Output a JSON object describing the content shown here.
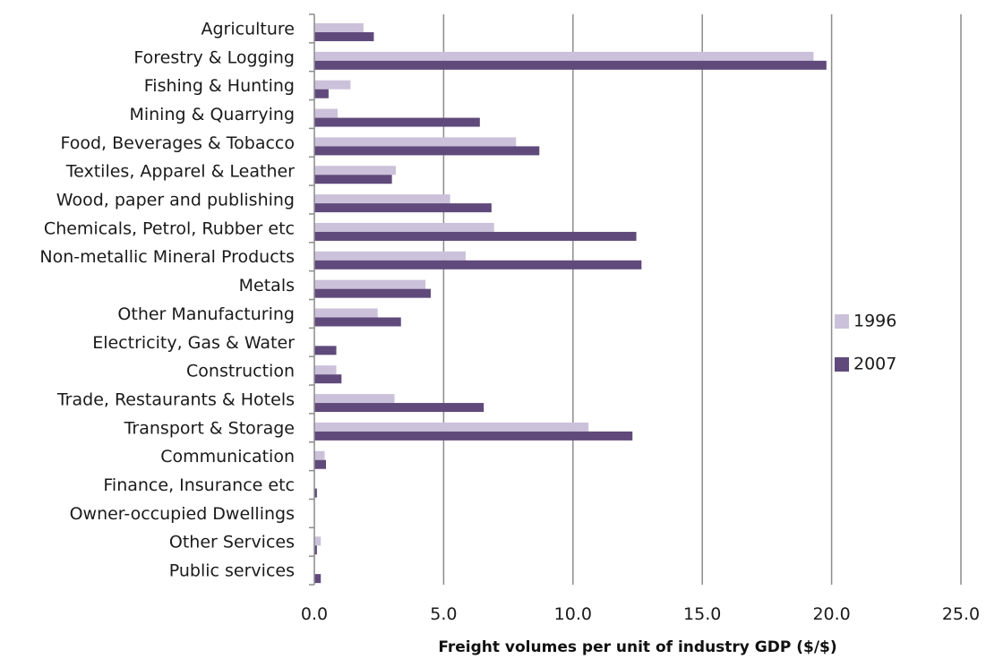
{
  "chart_data": {
    "type": "bar",
    "orientation": "horizontal",
    "categories": [
      "Agriculture",
      "Forestry & Logging",
      "Fishing & Hunting",
      "Mining & Quarrying",
      "Food, Beverages & Tobacco",
      "Textiles, Apparel & Leather",
      "Wood, paper and publishing",
      "Chemicals, Petrol, Rubber etc",
      "Non-metallic Mineral Products",
      "Metals",
      "Other Manufacturing",
      "Electricity, Gas & Water",
      "Construction",
      "Trade, Restaurants & Hotels",
      "Transport & Storage",
      "Communication",
      "Finance, Insurance etc",
      "Owner-occupied Dwellings",
      "Other Services",
      "Public services"
    ],
    "series": [
      {
        "name": "1996",
        "color": "#ccc1da",
        "values": [
          1.9,
          19.3,
          1.4,
          0.9,
          7.8,
          3.15,
          5.25,
          6.95,
          5.85,
          4.3,
          2.45,
          0.0,
          0.85,
          3.1,
          10.6,
          0.4,
          0.0,
          0.0,
          0.25,
          0.0
        ]
      },
      {
        "name": "2007",
        "color": "#604a7b",
        "values": [
          2.3,
          19.8,
          0.55,
          6.4,
          8.7,
          3.0,
          6.85,
          12.45,
          12.65,
          4.5,
          3.35,
          0.85,
          1.05,
          6.55,
          12.3,
          0.45,
          0.1,
          0.0,
          0.1,
          0.25
        ]
      }
    ],
    "x_ticks": [
      "0.0",
      "5.0",
      "10.0",
      "15.0",
      "20.0",
      "25.0"
    ],
    "xlim": [
      0,
      25
    ],
    "xlabel": "Freight volumes per unit of industry GDP ($/$)",
    "ylabel": "",
    "title": "",
    "grid": "vertical",
    "legend": "right"
  }
}
